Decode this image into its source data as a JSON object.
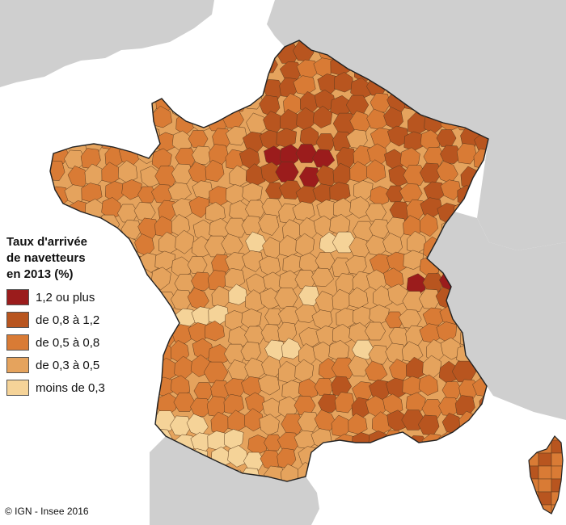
{
  "map": {
    "legend": {
      "title_lines": [
        "Taux d'arrivée",
        "de navetteurs",
        "en 2013 (%)"
      ],
      "items": [
        {
          "label": "1,2 ou plus",
          "color": "#9b1c1c"
        },
        {
          "label": "de 0,8 à 1,2",
          "color": "#b8551f"
        },
        {
          "label": "de 0,5 à 0,8",
          "color": "#d97b35"
        },
        {
          "label": "de 0,3 à 0,5",
          "color": "#e5a35d"
        },
        {
          "label": "moins de 0,3",
          "color": "#f5d398"
        }
      ]
    },
    "credit": "© IGN - Insee 2016",
    "colors": {
      "water": "#ffffff",
      "neighbor_land": "#cfcfcf",
      "border": "#222222"
    }
  }
}
